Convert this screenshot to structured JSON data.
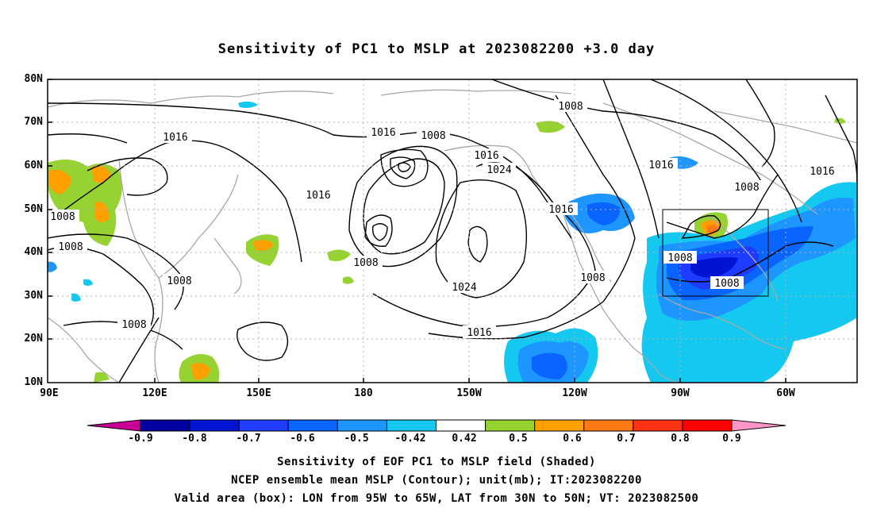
{
  "title": "Sensitivity of PC1 to MSLP at 2023082200 +3.0 day",
  "lat_labels": [
    "80N",
    "70N",
    "60N",
    "50N",
    "40N",
    "30N",
    "20N",
    "10N"
  ],
  "lon_labels": [
    "90E",
    "120E",
    "150E",
    "180",
    "150W",
    "120W",
    "90W",
    "60W"
  ],
  "contour_labels": [
    "1016",
    "1008",
    "1008",
    "1016",
    "1024",
    "1008",
    "1016",
    "1016",
    "1016",
    "1016",
    "1008",
    "1008",
    "1008",
    "1008",
    "1024",
    "1008",
    "1016",
    "1008",
    "1016",
    "1008",
    "1008"
  ],
  "colorbar": {
    "labels": [
      "-0.9",
      "-0.8",
      "-0.7",
      "-0.6",
      "-0.5",
      "-0.42",
      "0.42",
      "0.5",
      "0.6",
      "0.7",
      "0.8",
      "0.9"
    ],
    "colors": [
      "#0000a0",
      "#0014d2",
      "#1e3cff",
      "#0a64ff",
      "#1e96ff",
      "#14c8f0",
      "#ffffff",
      "#96d232",
      "#ffa000",
      "#ff7814",
      "#ff3214",
      "#ff0000"
    ],
    "low_end_color": "#c80096",
    "high_end_color": "#ff96c8"
  },
  "valid_box": {
    "lon": [
      "95W",
      "65W"
    ],
    "lat": [
      "30N",
      "50N"
    ]
  },
  "captions": {
    "line1": "Sensitivity of EOF PC1 to MSLP field (Shaded)",
    "line2": "NCEP ensemble mean MSLP (Contour); unit(mb); IT:2023082200",
    "line3": "Valid area (box): LON from 95W to 65W, LAT from 30N to 50N; VT: 2023082500"
  }
}
